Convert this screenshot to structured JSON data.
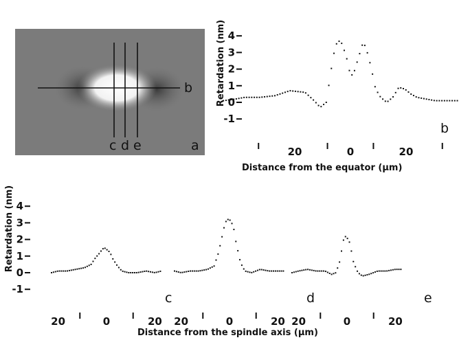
{
  "micrograph": {
    "line_labels": [
      "c",
      "d",
      "e"
    ],
    "equator_label": "b",
    "panel_label": "a"
  },
  "chart_data": [
    {
      "type": "line",
      "panel": "b",
      "ylabel": "Retardation (nm)",
      "xlabel": "Distance from the equator (µm)",
      "ylim": [
        -1,
        4
      ],
      "yticks": [
        "4",
        "3",
        "2",
        "1",
        "0",
        "-1"
      ],
      "xticks": [
        "20",
        "0",
        "20"
      ],
      "xlim": [
        -42,
        45
      ],
      "series": [
        {
          "x": [
            -42,
            -38,
            -35,
            -30,
            -25,
            -20,
            -15,
            -12,
            -10,
            -8,
            -6,
            -5,
            -4,
            -3,
            -2,
            -1,
            0,
            1,
            2,
            3,
            4,
            5,
            6,
            7,
            8,
            9,
            10,
            12,
            14,
            16,
            18,
            20,
            22,
            25,
            28,
            32,
            36,
            40,
            45
          ],
          "y": [
            0.1,
            0.2,
            0.3,
            0.3,
            0.4,
            0.7,
            0.6,
            0.1,
            -0.3,
            0,
            2.4,
            3.4,
            3.7,
            3.6,
            3.1,
            2.5,
            1.6,
            1.7,
            2.3,
            2.9,
            3.5,
            3.4,
            2.7,
            2.0,
            1.0,
            0.6,
            0.3,
            0,
            0.3,
            0.9,
            0.8,
            0.5,
            0.3,
            0.2,
            0.1,
            0.1,
            0.1,
            0.0,
            0.1
          ]
        }
      ]
    },
    {
      "type": "line",
      "panel": "c, d, e",
      "ylabel": "Retardation (nm)",
      "xlabel": "Distance from the spindle axis (µm)",
      "ylim": [
        -1,
        4
      ],
      "yticks": [
        "4",
        "3",
        "2",
        "1",
        "0",
        "-1"
      ],
      "xticks": [
        "20",
        "0",
        "20",
        "20",
        "0",
        "20",
        "20",
        "0",
        "20"
      ],
      "series": [
        {
          "name": "c",
          "x": [
            -25,
            -22,
            -18,
            -14,
            -10,
            -7,
            -5,
            -3,
            -2,
            -1,
            0,
            1,
            2,
            3,
            5,
            7,
            10,
            14,
            18,
            22,
            25
          ],
          "y": [
            0,
            0.1,
            0.1,
            0.2,
            0.3,
            0.5,
            0.9,
            1.2,
            1.4,
            1.5,
            1.4,
            1.3,
            1.1,
            0.8,
            0.4,
            0.1,
            0,
            0,
            0.1,
            0,
            0.1
          ]
        },
        {
          "name": "d",
          "x": [
            -25,
            -22,
            -18,
            -14,
            -10,
            -7,
            -5,
            -3,
            -2,
            -1,
            0,
            1,
            2,
            3,
            5,
            7,
            10,
            14,
            18,
            22,
            25
          ],
          "y": [
            0.1,
            0,
            0.1,
            0.1,
            0.2,
            0.4,
            1.2,
            2.4,
            3.0,
            3.2,
            3.2,
            3.0,
            2.6,
            1.8,
            0.6,
            0.1,
            0,
            0.2,
            0.1,
            0.1,
            0.1
          ]
        },
        {
          "name": "e",
          "x": [
            -25,
            -22,
            -18,
            -14,
            -10,
            -7,
            -5,
            -3,
            -2,
            -1,
            0,
            1,
            2,
            3,
            5,
            7,
            10,
            14,
            18,
            22,
            25
          ],
          "y": [
            0,
            0.1,
            0.2,
            0.1,
            0.1,
            -0.1,
            0,
            0.8,
            1.8,
            2.2,
            2.1,
            1.9,
            1.3,
            0.6,
            0,
            -0.2,
            -0.1,
            0.1,
            0.1,
            0.2,
            0.2
          ]
        }
      ]
    }
  ]
}
